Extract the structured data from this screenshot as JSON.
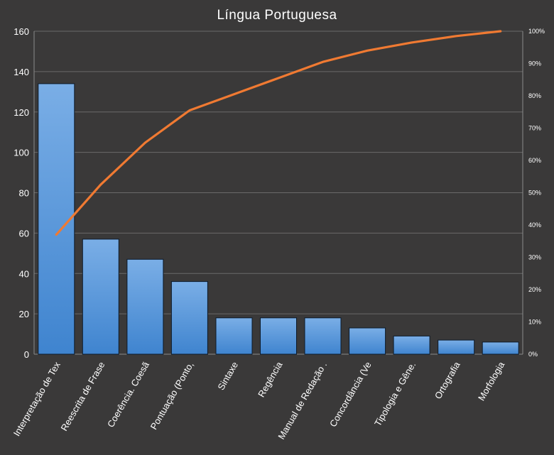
{
  "chart_data": {
    "type": "bar",
    "title": "Língua Portuguesa",
    "categories": [
      "Interpretação de Tex",
      "Reescrita de Frase",
      "Coerência. Coesã",
      "Pontuação (Ponto,",
      "Sintaxe",
      "Regência",
      "Manual de Redação .",
      "Concordância (Ve",
      "Tipologia e Gêne.",
      "Ortografia",
      "Morfologia"
    ],
    "series": [
      {
        "type": "bar",
        "axis": "left",
        "values": [
          134,
          57,
          47,
          36,
          18,
          18,
          18,
          13,
          9,
          7,
          6
        ]
      },
      {
        "type": "line",
        "axis": "right",
        "values": [
          37,
          52.5,
          65.5,
          75.5,
          80.5,
          85.5,
          90.5,
          94,
          96.5,
          98.5,
          100
        ]
      }
    ],
    "ylim": [
      0,
      160
    ],
    "yticks": [
      "0",
      "20",
      "40",
      "60",
      "80",
      "100",
      "120",
      "140",
      "160"
    ],
    "y2lim": [
      0,
      100
    ],
    "y2ticks": [
      "0%",
      "10%",
      "20%",
      "30%",
      "40%",
      "50%",
      "60%",
      "70%",
      "80%",
      "90%",
      "100%"
    ],
    "grid": true,
    "legend": "none",
    "colors": {
      "background": "#3a3939",
      "bar_top": "#7aaee6",
      "bar_bottom": "#3f84cf",
      "line": "#f07a32",
      "grid": "#6a6a6a",
      "text": "#ffffff"
    }
  }
}
